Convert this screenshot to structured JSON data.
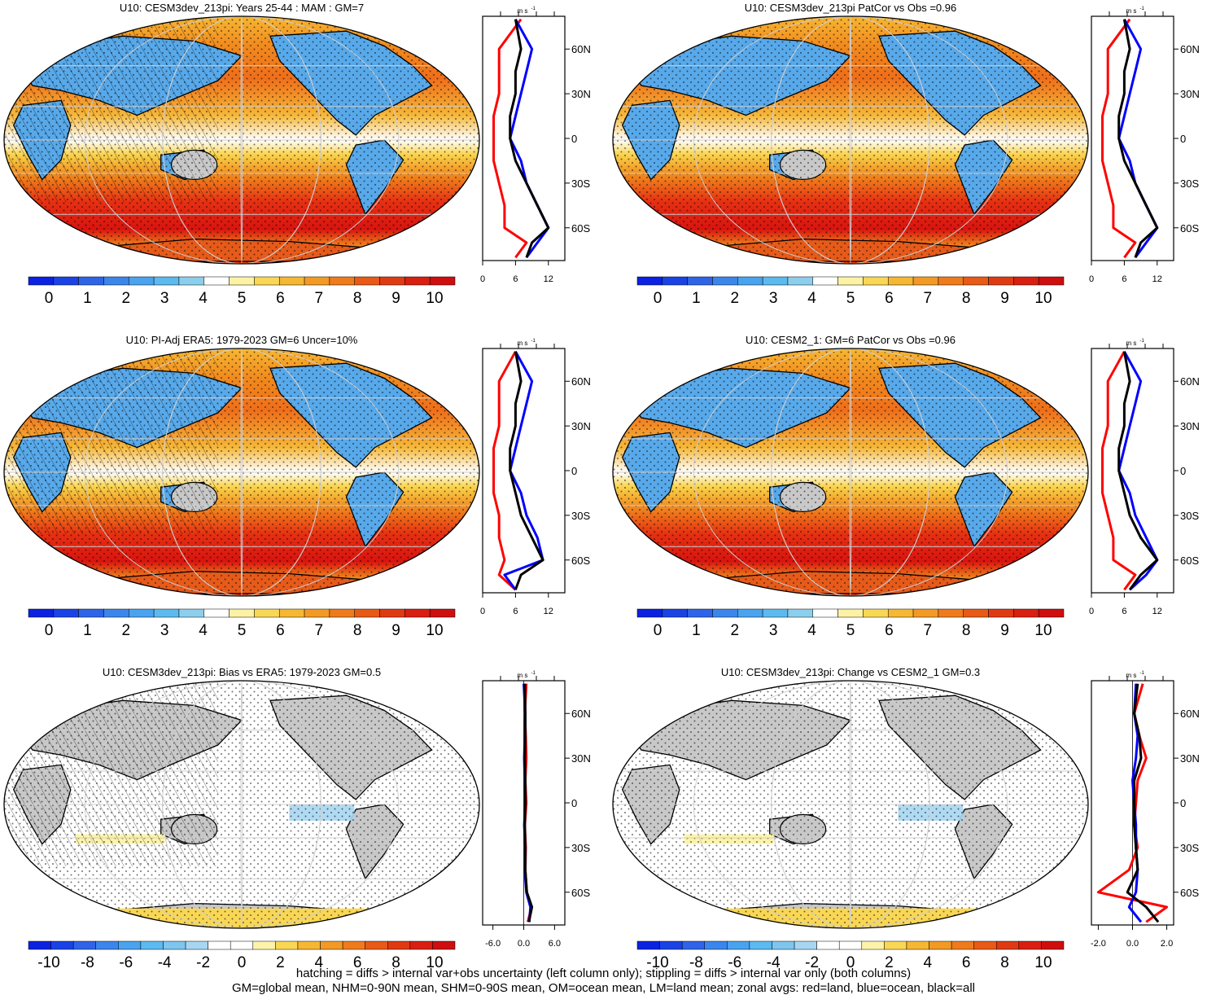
{
  "panels": [
    {
      "title": "U10: CESM3dev_213pi: Years 25-44 : MAM : GM=7",
      "type": "mean",
      "hatch": true,
      "cb": [
        "0",
        "1",
        "2",
        "3",
        "4",
        "5",
        "6",
        "7",
        "8",
        "9",
        "10"
      ],
      "zx": [
        "0",
        "6",
        "12"
      ],
      "zscale": [
        0,
        15
      ]
    },
    {
      "title": "U10: CESM3dev_213pi PatCor vs Obs =0.96",
      "type": "mean",
      "hatch": false,
      "cb": [
        "0",
        "1",
        "2",
        "3",
        "4",
        "5",
        "6",
        "7",
        "8",
        "9",
        "10"
      ],
      "zx": [
        "0",
        "6",
        "12"
      ],
      "zscale": [
        0,
        15
      ]
    },
    {
      "title": "U10: PI-Adj ERA5: 1979-2023 GM=6 Uncer=10%",
      "type": "mean",
      "hatch": true,
      "cb": [
        "0",
        "1",
        "2",
        "3",
        "4",
        "5",
        "6",
        "7",
        "8",
        "9",
        "10"
      ],
      "zx": [
        "0",
        "6",
        "12"
      ],
      "zscale": [
        0,
        15
      ]
    },
    {
      "title": "U10: CESM2_1: GM=6 PatCor vs Obs =0.96",
      "type": "mean",
      "hatch": false,
      "cb": [
        "0",
        "1",
        "2",
        "3",
        "4",
        "5",
        "6",
        "7",
        "8",
        "9",
        "10"
      ],
      "zx": [
        "0",
        "6",
        "12"
      ],
      "zscale": [
        0,
        15
      ]
    },
    {
      "title": "U10: CESM3dev_213pi: Bias vs ERA5: 1979-2023 GM=0.5",
      "type": "bias",
      "hatch": true,
      "cb": [
        "-10",
        "-8",
        "-6",
        "-4",
        "-2",
        "0",
        "2",
        "4",
        "6",
        "8",
        "10"
      ],
      "zx": [
        "-6.0",
        "0.0",
        "6.0"
      ],
      "zscale": [
        -8,
        8
      ]
    },
    {
      "title": "U10: CESM3dev_213pi: Change vs CESM2_1 GM=0.3",
      "type": "change",
      "hatch": false,
      "cb": [
        "-10",
        "-8",
        "-6",
        "-4",
        "-2",
        "0",
        "2",
        "4",
        "6",
        "8",
        "10"
      ],
      "zx": [
        "-2.0",
        "0.0",
        "2.0"
      ],
      "zscale": [
        -2.4,
        2.4
      ]
    }
  ],
  "zonal_unit": "m s",
  "zonal_unit_exp": "-1",
  "lat_labels": [
    "60N",
    "30N",
    "0",
    "30S",
    "60S"
  ],
  "footnote_1": "hatching = diffs > internal var+obs uncertainty (left column only); stippling = diffs > internal var only (both columns)",
  "footnote_2": "GM=global mean, NHM=0-90N mean, SHM=0-90S mean, OM=ocean mean, LM=land mean; zonal avgs: red=land, blue=ocean, black=all",
  "chart_data": [
    {
      "type": "map",
      "title": "U10: CESM3dev_213pi: Years 25-44 : MAM : GM=7",
      "colorbar_range": [
        0,
        10
      ],
      "zonal_profile": {
        "lat": [
          80,
          60,
          45,
          30,
          15,
          0,
          -15,
          -30,
          -45,
          -60,
          -70,
          -80
        ],
        "land": [
          7,
          3,
          3,
          3,
          2,
          2,
          2,
          3,
          4,
          4,
          8,
          6
        ],
        "ocean": [
          6,
          9,
          8,
          7,
          6,
          5,
          7,
          8,
          10,
          12,
          10,
          8
        ],
        "all": [
          6,
          7,
          6,
          6,
          5,
          5,
          6,
          8,
          10,
          12,
          9,
          8
        ]
      }
    },
    {
      "type": "map",
      "title": "U10: CESM3dev_213pi PatCor vs Obs =0.96",
      "colorbar_range": [
        0,
        10
      ],
      "zonal_profile": {
        "lat": [
          80,
          60,
          45,
          30,
          15,
          0,
          -15,
          -30,
          -45,
          -60,
          -70,
          -80
        ],
        "land": [
          7,
          3,
          3,
          3,
          2,
          2,
          2,
          3,
          4,
          4,
          8,
          6
        ],
        "ocean": [
          6,
          9,
          8,
          7,
          6,
          5,
          7,
          8,
          10,
          12,
          10,
          8
        ],
        "all": [
          6,
          7,
          6,
          6,
          5,
          5,
          6,
          8,
          10,
          12,
          9,
          8
        ]
      }
    },
    {
      "type": "map",
      "title": "U10: PI-Adj ERA5: 1979-2023 GM=6 Uncer=10%",
      "colorbar_range": [
        0,
        10
      ],
      "zonal_profile": {
        "lat": [
          80,
          60,
          45,
          30,
          15,
          0,
          -15,
          -30,
          -45,
          -60,
          -70,
          -80
        ],
        "land": [
          6,
          3,
          3,
          3,
          2,
          2,
          2,
          3,
          3,
          4,
          3,
          6
        ],
        "ocean": [
          6,
          9,
          8,
          7,
          6,
          5,
          7,
          8,
          10,
          11,
          4,
          6
        ],
        "all": [
          6,
          7,
          6,
          6,
          5,
          5,
          6,
          7,
          9,
          11,
          7,
          6
        ]
      }
    },
    {
      "type": "map",
      "title": "U10: CESM2_1: GM=6 PatCor vs Obs =0.96",
      "colorbar_range": [
        0,
        10
      ],
      "zonal_profile": {
        "lat": [
          80,
          60,
          45,
          30,
          15,
          0,
          -15,
          -30,
          -45,
          -60,
          -70,
          -80
        ],
        "land": [
          6,
          3,
          3,
          3,
          2,
          2,
          2,
          3,
          4,
          4,
          8,
          6
        ],
        "ocean": [
          6,
          9,
          8,
          7,
          6,
          5,
          7,
          8,
          10,
          12,
          10,
          7
        ],
        "all": [
          6,
          7,
          6,
          6,
          5,
          5,
          6,
          7,
          9,
          12,
          9,
          7
        ]
      }
    },
    {
      "type": "map",
      "title": "U10: CESM3dev_213pi: Bias vs ERA5: 1979-2023 GM=0.5",
      "colorbar_range": [
        -10,
        10
      ],
      "zonal_profile": {
        "lat": [
          80,
          60,
          45,
          30,
          15,
          0,
          -15,
          -30,
          -45,
          -60,
          -70,
          -80
        ],
        "land": [
          0.5,
          0.2,
          0.4,
          0.5,
          0.3,
          0.5,
          0.2,
          0.4,
          0.3,
          0.6,
          1.5,
          0.8
        ],
        "ocean": [
          0,
          0.3,
          0.2,
          0.1,
          0.2,
          0.3,
          0.1,
          0.3,
          0.2,
          0.5,
          1.3,
          1.1
        ],
        "all": [
          0.2,
          0.3,
          0.3,
          0.2,
          0.3,
          0.3,
          0.2,
          0.3,
          0.3,
          0.6,
          1.6,
          1.0
        ]
      }
    },
    {
      "type": "map",
      "title": "U10: CESM3dev_213pi: Change vs CESM2_1 GM=0.3",
      "colorbar_range": [
        -10,
        10
      ],
      "zonal_profile": {
        "lat": [
          80,
          60,
          45,
          30,
          15,
          0,
          -15,
          -30,
          -45,
          -60,
          -70,
          -80
        ],
        "land": [
          0.6,
          0.1,
          0.4,
          0.8,
          0.3,
          0.2,
          0.1,
          0.3,
          -0.2,
          -2.0,
          2.0,
          0.8
        ],
        "ocean": [
          0.2,
          0.1,
          0.3,
          0.2,
          0.0,
          0.1,
          0.2,
          0.2,
          0.3,
          0.2,
          -0.2,
          0.5
        ],
        "all": [
          0.3,
          0.1,
          0.4,
          0.5,
          0.1,
          0.1,
          0.1,
          0.2,
          0.3,
          -0.3,
          0.8,
          1.5
        ]
      }
    }
  ]
}
